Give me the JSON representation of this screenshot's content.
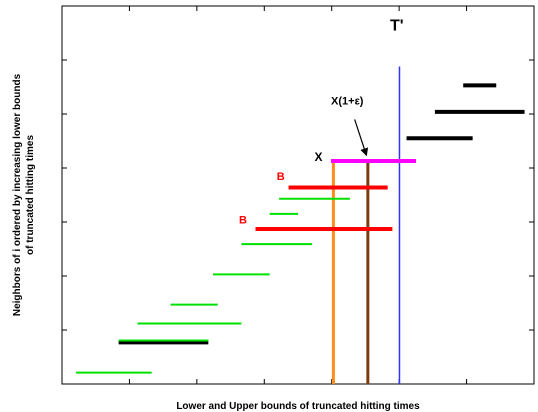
{
  "chart_data": {
    "type": "interval",
    "title": "",
    "xlabel": "Lower and Upper bounds of truncated hitting times",
    "ylabel_line1": "Neighbors of i ordered by increasing lower bounds",
    "ylabel_line2": "of truncated hitting times",
    "xlim": [
      0,
      100
    ],
    "ylim": [
      0,
      100
    ],
    "grid": false,
    "colors": {
      "green": "#00e000",
      "black": "#000000",
      "red": "#ff0000",
      "magenta": "#ff00ff",
      "orange": "#ff8c1a",
      "brown": "#7a3d12",
      "blue": "#3333ff"
    },
    "intervals": [
      {
        "start": 3,
        "end": 19,
        "y": 3,
        "color": "green"
      },
      {
        "start": 12,
        "end": 31,
        "y": 11,
        "color": "black"
      },
      {
        "start": 12,
        "end": 31,
        "y": 11.5,
        "color": "green"
      },
      {
        "start": 16,
        "end": 38,
        "y": 16,
        "color": "green"
      },
      {
        "start": 23,
        "end": 33,
        "y": 21,
        "color": "green"
      },
      {
        "start": 32,
        "end": 44,
        "y": 29,
        "color": "green"
      },
      {
        "start": 38,
        "end": 53,
        "y": 37,
        "color": "green"
      },
      {
        "start": 41,
        "end": 70,
        "y": 41,
        "color": "red"
      },
      {
        "start": 44,
        "end": 50,
        "y": 45,
        "color": "green"
      },
      {
        "start": 46,
        "end": 61,
        "y": 49,
        "color": "green"
      },
      {
        "start": 48,
        "end": 69,
        "y": 52,
        "color": "red"
      },
      {
        "start": 57,
        "end": 75,
        "y": 59,
        "color": "magenta"
      },
      {
        "start": 73,
        "end": 87,
        "y": 65,
        "color": "black"
      },
      {
        "start": 79,
        "end": 98,
        "y": 72,
        "color": "black"
      },
      {
        "start": 85,
        "end": 92,
        "y": 79,
        "color": "black"
      }
    ],
    "vlines": [
      {
        "x": 57.5,
        "y_top": 59,
        "color": "orange"
      },
      {
        "x": 64.8,
        "y_top": 59,
        "color": "brown"
      },
      {
        "x": 71.5,
        "y_top": 84,
        "color": "blue"
      }
    ],
    "annotations": [
      {
        "text": "T'",
        "x": 69.5,
        "y": 93.5,
        "color": "black",
        "size": 16
      },
      {
        "text": "X(1+ε)",
        "x": 57,
        "y": 74,
        "color": "black",
        "size": 11
      },
      {
        "text": "X",
        "x": 53.5,
        "y": 59,
        "color": "black",
        "size": 12
      },
      {
        "text": "B",
        "x": 45.5,
        "y": 54,
        "color": "red",
        "size": 11
      },
      {
        "text": "B",
        "x": 37.5,
        "y": 42.5,
        "color": "red",
        "size": 11
      }
    ],
    "arrow": {
      "from": [
        62,
        70
      ],
      "to": [
        64.5,
        60.5
      ],
      "color": "black"
    }
  }
}
